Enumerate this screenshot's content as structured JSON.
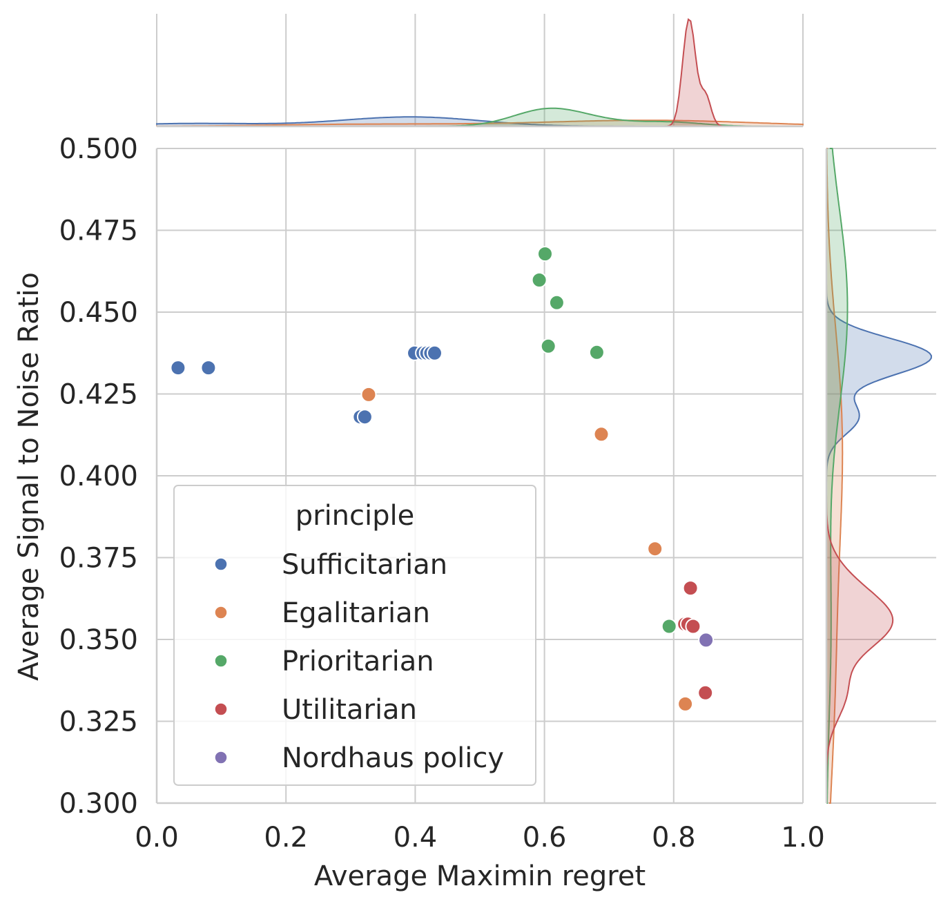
{
  "chart_data": {
    "type": "scatter",
    "title": "",
    "xlabel": "Average Maximin regret",
    "ylabel": "Average Signal to Noise Ratio",
    "xlim": [
      0.0,
      1.0
    ],
    "ylim": [
      0.3,
      0.5
    ],
    "x_ticks": [
      "0.0",
      "0.2",
      "0.4",
      "0.6",
      "0.8",
      "1.0"
    ],
    "y_ticks": [
      "0.300",
      "0.325",
      "0.350",
      "0.375",
      "0.400",
      "0.425",
      "0.450",
      "0.475",
      "0.500"
    ],
    "grid": true,
    "legend": {
      "title": "principle",
      "position": "lower-left"
    },
    "marginals": {
      "top": "kde of x per series",
      "right": "kde of y per series"
    },
    "series": [
      {
        "name": "Sufficitarian",
        "color": "#4c72b0",
        "points": [
          [
            0.033,
            0.433
          ],
          [
            0.08,
            0.433
          ],
          [
            0.315,
            0.418
          ],
          [
            0.322,
            0.418
          ],
          [
            0.399,
            0.4375
          ],
          [
            0.412,
            0.4375
          ],
          [
            0.418,
            0.4375
          ],
          [
            0.424,
            0.4375
          ],
          [
            0.43,
            0.4375
          ]
        ]
      },
      {
        "name": "Egalitarian",
        "color": "#dd8452",
        "points": [
          [
            0.328,
            0.4248
          ],
          [
            0.688,
            0.4127
          ],
          [
            0.771,
            0.3777
          ],
          [
            0.818,
            0.3303
          ]
        ]
      },
      {
        "name": "Prioritarian",
        "color": "#55a868",
        "points": [
          [
            0.601,
            0.4678
          ],
          [
            0.592,
            0.4598
          ],
          [
            0.619,
            0.4529
          ],
          [
            0.606,
            0.4396
          ],
          [
            0.681,
            0.4377
          ],
          [
            0.793,
            0.354
          ]
        ]
      },
      {
        "name": "Utilitarian",
        "color": "#c44e52",
        "points": [
          [
            0.826,
            0.3657
          ],
          [
            0.817,
            0.3547
          ],
          [
            0.822,
            0.3547
          ],
          [
            0.83,
            0.354
          ],
          [
            0.849,
            0.3337
          ]
        ]
      },
      {
        "name": "Nordhaus policy",
        "color": "#8172b3",
        "points": [
          [
            0.85,
            0.3498
          ]
        ]
      }
    ]
  }
}
